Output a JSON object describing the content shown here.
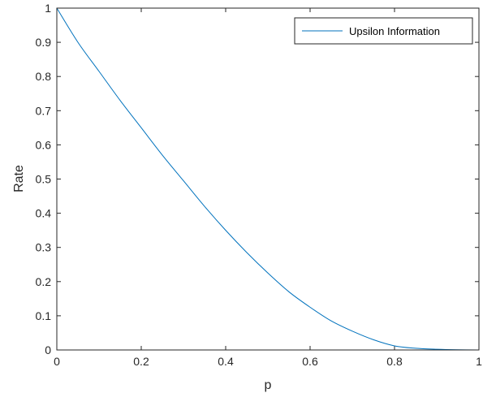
{
  "chart_data": {
    "type": "line",
    "xlabel": "p",
    "ylabel": "Rate",
    "xlim": [
      0,
      1
    ],
    "ylim": [
      0,
      1
    ],
    "xticks": [
      "0",
      "0.2",
      "0.4",
      "0.6",
      "0.8",
      "1"
    ],
    "yticks": [
      "0",
      "0.1",
      "0.2",
      "0.3",
      "0.4",
      "0.5",
      "0.6",
      "0.7",
      "0.8",
      "0.9",
      "1"
    ],
    "legend_position": "top-right",
    "grid": false,
    "series": [
      {
        "name": "Upsilon Information",
        "color": "#0072BD",
        "x": [
          0,
          0.05,
          0.1,
          0.15,
          0.2,
          0.25,
          0.3,
          0.35,
          0.4,
          0.45,
          0.5,
          0.55,
          0.6,
          0.65,
          0.7,
          0.75,
          0.8,
          0.85,
          0.9,
          0.95,
          1
        ],
        "y": [
          1,
          0.9,
          0.815,
          0.73,
          0.65,
          0.57,
          0.495,
          0.42,
          0.35,
          0.285,
          0.225,
          0.17,
          0.125,
          0.085,
          0.055,
          0.03,
          0.012,
          0.005,
          0.002,
          0.0005,
          0
        ]
      }
    ]
  }
}
